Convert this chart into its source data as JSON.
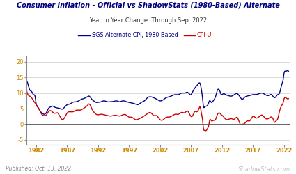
{
  "title": "Consumer Inflation - Official vs ShadowStats (1980-Based) Alternate",
  "subtitle": "Year to Year Change. Through Sep. 2022",
  "legend": [
    "SGS Alternate CPI, 1980-Based",
    "CPI-U"
  ],
  "line_colors": [
    "#00008B",
    "#CC0000"
  ],
  "xlabel_bottom": "Published: Oct. 13, 2022",
  "xlabel_right": "ShadowStats.com",
  "xticks": [
    1982,
    1987,
    1992,
    1997,
    2002,
    2007,
    2012,
    2017,
    2022
  ],
  "yticks": [
    -5,
    0,
    5,
    10,
    15,
    20
  ],
  "ylim": [
    -6.5,
    22
  ],
  "xlim": [
    1980.5,
    2023
  ],
  "bg_color": "#FFFFFF",
  "grid_color": "#CCCCCC",
  "title_color": "#000080",
  "tick_color": "#CC8800",
  "shadow_color": "#C0C0C0",
  "sgs_points": [
    [
      1980.0,
      15.0
    ],
    [
      1980.3,
      14.5
    ],
    [
      1980.7,
      13.0
    ],
    [
      1981.0,
      11.0
    ],
    [
      1981.3,
      10.5
    ],
    [
      1981.6,
      9.5
    ],
    [
      1981.9,
      8.5
    ],
    [
      1982.0,
      7.0
    ],
    [
      1982.3,
      5.5
    ],
    [
      1982.6,
      4.5
    ],
    [
      1983.0,
      3.5
    ],
    [
      1983.3,
      3.2
    ],
    [
      1983.7,
      3.8
    ],
    [
      1984.0,
      5.0
    ],
    [
      1984.3,
      5.5
    ],
    [
      1984.7,
      5.8
    ],
    [
      1985.0,
      5.5
    ],
    [
      1985.5,
      5.2
    ],
    [
      1985.9,
      5.0
    ],
    [
      1986.2,
      4.8
    ],
    [
      1986.5,
      5.2
    ],
    [
      1987.0,
      6.2
    ],
    [
      1987.5,
      6.5
    ],
    [
      1987.9,
      7.0
    ],
    [
      1988.5,
      7.2
    ],
    [
      1988.9,
      7.5
    ],
    [
      1989.3,
      8.0
    ],
    [
      1989.7,
      8.2
    ],
    [
      1990.0,
      8.5
    ],
    [
      1990.3,
      8.8
    ],
    [
      1990.6,
      9.0
    ],
    [
      1991.0,
      8.0
    ],
    [
      1991.3,
      7.5
    ],
    [
      1991.7,
      7.0
    ],
    [
      1992.0,
      7.0
    ],
    [
      1992.5,
      7.2
    ],
    [
      1993.0,
      7.5
    ],
    [
      1993.5,
      7.2
    ],
    [
      1994.0,
      7.2
    ],
    [
      1994.5,
      7.3
    ],
    [
      1995.0,
      7.5
    ],
    [
      1995.5,
      7.2
    ],
    [
      1996.0,
      7.5
    ],
    [
      1996.5,
      7.3
    ],
    [
      1997.0,
      7.0
    ],
    [
      1997.5,
      6.8
    ],
    [
      1998.0,
      6.5
    ],
    [
      1998.5,
      6.3
    ],
    [
      1999.0,
      7.0
    ],
    [
      1999.5,
      7.5
    ],
    [
      2000.0,
      8.5
    ],
    [
      2000.5,
      8.8
    ],
    [
      2001.0,
      8.5
    ],
    [
      2001.5,
      8.0
    ],
    [
      2002.0,
      7.5
    ],
    [
      2002.5,
      7.8
    ],
    [
      2003.0,
      8.5
    ],
    [
      2003.5,
      8.8
    ],
    [
      2004.0,
      9.2
    ],
    [
      2004.5,
      9.5
    ],
    [
      2005.0,
      9.5
    ],
    [
      2005.5,
      10.0
    ],
    [
      2006.0,
      10.0
    ],
    [
      2006.5,
      10.2
    ],
    [
      2007.0,
      9.5
    ],
    [
      2007.3,
      10.5
    ],
    [
      2007.6,
      11.5
    ],
    [
      2008.0,
      12.5
    ],
    [
      2008.3,
      13.2
    ],
    [
      2008.5,
      13.0
    ],
    [
      2008.7,
      11.0
    ],
    [
      2008.9,
      8.0
    ],
    [
      2009.0,
      6.0
    ],
    [
      2009.2,
      5.5
    ],
    [
      2009.5,
      5.8
    ],
    [
      2009.8,
      6.5
    ],
    [
      2010.0,
      7.5
    ],
    [
      2010.3,
      7.0
    ],
    [
      2010.6,
      7.5
    ],
    [
      2011.0,
      9.0
    ],
    [
      2011.3,
      11.0
    ],
    [
      2011.5,
      11.2
    ],
    [
      2011.7,
      10.5
    ],
    [
      2011.9,
      9.5
    ],
    [
      2012.0,
      9.5
    ],
    [
      2012.3,
      9.8
    ],
    [
      2012.6,
      9.5
    ],
    [
      2013.0,
      9.2
    ],
    [
      2013.5,
      9.0
    ],
    [
      2014.0,
      9.5
    ],
    [
      2014.5,
      9.8
    ],
    [
      2015.0,
      8.5
    ],
    [
      2015.3,
      8.0
    ],
    [
      2015.6,
      8.5
    ],
    [
      2016.0,
      9.0
    ],
    [
      2016.5,
      9.2
    ],
    [
      2017.0,
      9.5
    ],
    [
      2017.5,
      9.5
    ],
    [
      2018.0,
      9.8
    ],
    [
      2018.5,
      10.0
    ],
    [
      2019.0,
      9.5
    ],
    [
      2019.5,
      9.2
    ],
    [
      2020.0,
      9.5
    ],
    [
      2020.5,
      8.5
    ],
    [
      2021.0,
      9.5
    ],
    [
      2021.3,
      10.0
    ],
    [
      2021.5,
      11.5
    ],
    [
      2021.7,
      13.0
    ],
    [
      2021.9,
      14.5
    ],
    [
      2022.0,
      16.0
    ],
    [
      2022.3,
      17.0
    ],
    [
      2022.6,
      17.2
    ],
    [
      2022.75,
      17.0
    ]
  ],
  "cpi_points": [
    [
      1980.0,
      14.0
    ],
    [
      1980.3,
      12.5
    ],
    [
      1980.6,
      10.0
    ],
    [
      1981.0,
      9.0
    ],
    [
      1981.3,
      8.5
    ],
    [
      1981.6,
      7.5
    ],
    [
      1982.0,
      6.5
    ],
    [
      1982.3,
      5.5
    ],
    [
      1982.6,
      4.5
    ],
    [
      1983.0,
      3.0
    ],
    [
      1983.3,
      2.8
    ],
    [
      1983.7,
      3.0
    ],
    [
      1984.0,
      4.0
    ],
    [
      1984.5,
      4.2
    ],
    [
      1985.0,
      3.5
    ],
    [
      1985.5,
      3.6
    ],
    [
      1986.0,
      2.0
    ],
    [
      1986.3,
      1.5
    ],
    [
      1986.6,
      2.0
    ],
    [
      1987.0,
      3.5
    ],
    [
      1987.5,
      4.0
    ],
    [
      1988.0,
      4.0
    ],
    [
      1988.5,
      4.5
    ],
    [
      1989.0,
      4.5
    ],
    [
      1989.5,
      4.8
    ],
    [
      1990.0,
      5.5
    ],
    [
      1990.3,
      6.0
    ],
    [
      1990.6,
      6.5
    ],
    [
      1991.0,
      5.0
    ],
    [
      1991.3,
      4.0
    ],
    [
      1991.7,
      3.2
    ],
    [
      1992.0,
      3.0
    ],
    [
      1992.5,
      3.2
    ],
    [
      1993.0,
      3.0
    ],
    [
      1993.5,
      2.8
    ],
    [
      1994.0,
      2.6
    ],
    [
      1994.5,
      2.8
    ],
    [
      1995.0,
      2.8
    ],
    [
      1995.5,
      2.6
    ],
    [
      1996.0,
      3.0
    ],
    [
      1996.5,
      3.0
    ],
    [
      1997.0,
      2.3
    ],
    [
      1997.5,
      2.2
    ],
    [
      1998.0,
      1.5
    ],
    [
      1998.5,
      1.6
    ],
    [
      1999.0,
      2.1
    ],
    [
      1999.5,
      2.7
    ],
    [
      2000.0,
      3.4
    ],
    [
      2000.5,
      3.7
    ],
    [
      2001.0,
      2.8
    ],
    [
      2001.5,
      2.7
    ],
    [
      2002.0,
      1.5
    ],
    [
      2002.5,
      1.4
    ],
    [
      2003.0,
      2.2
    ],
    [
      2003.5,
      2.3
    ],
    [
      2004.0,
      2.7
    ],
    [
      2004.5,
      3.2
    ],
    [
      2005.0,
      3.2
    ],
    [
      2005.5,
      3.8
    ],
    [
      2006.0,
      3.7
    ],
    [
      2006.5,
      4.2
    ],
    [
      2007.0,
      2.5
    ],
    [
      2007.3,
      2.8
    ],
    [
      2007.6,
      4.0
    ],
    [
      2008.0,
      4.0
    ],
    [
      2008.3,
      5.0
    ],
    [
      2008.5,
      5.5
    ],
    [
      2008.7,
      3.5
    ],
    [
      2008.9,
      1.0
    ],
    [
      2009.0,
      -1.0
    ],
    [
      2009.2,
      -2.0
    ],
    [
      2009.4,
      -2.1
    ],
    [
      2009.5,
      -2.0
    ],
    [
      2009.7,
      -1.3
    ],
    [
      2009.9,
      -0.2
    ],
    [
      2010.0,
      1.0
    ],
    [
      2010.3,
      1.1
    ],
    [
      2010.6,
      1.2
    ],
    [
      2011.0,
      1.6
    ],
    [
      2011.3,
      3.2
    ],
    [
      2011.5,
      3.6
    ],
    [
      2011.7,
      3.5
    ],
    [
      2011.9,
      3.0
    ],
    [
      2012.0,
      2.9
    ],
    [
      2012.5,
      1.8
    ],
    [
      2013.0,
      1.5
    ],
    [
      2013.5,
      1.8
    ],
    [
      2014.0,
      1.6
    ],
    [
      2014.5,
      2.1
    ],
    [
      2015.0,
      -0.1
    ],
    [
      2015.3,
      0.0
    ],
    [
      2015.6,
      0.1
    ],
    [
      2016.0,
      1.0
    ],
    [
      2016.5,
      1.1
    ],
    [
      2017.0,
      2.5
    ],
    [
      2017.5,
      2.0
    ],
    [
      2018.0,
      2.4
    ],
    [
      2018.5,
      2.9
    ],
    [
      2019.0,
      1.9
    ],
    [
      2019.5,
      1.8
    ],
    [
      2020.0,
      2.3
    ],
    [
      2020.3,
      1.5
    ],
    [
      2020.5,
      0.6
    ],
    [
      2020.7,
      1.0
    ],
    [
      2021.0,
      1.7
    ],
    [
      2021.3,
      4.2
    ],
    [
      2021.5,
      5.4
    ],
    [
      2021.7,
      6.2
    ],
    [
      2021.9,
      7.0
    ],
    [
      2022.0,
      7.9
    ],
    [
      2022.3,
      8.5
    ],
    [
      2022.5,
      8.2
    ],
    [
      2022.75,
      8.2
    ]
  ]
}
